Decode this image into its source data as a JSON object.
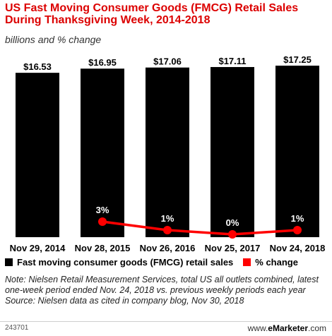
{
  "title": "US Fast Moving Consumer Goods (FMCG) Retail Sales During Thanksgiving Week, 2014-2018",
  "subtitle": "billions and % change",
  "chart_data": {
    "type": "bar",
    "categories": [
      "Nov 29, 2014",
      "Nov 28, 2015",
      "Nov 26, 2016",
      "Nov 25, 2017",
      "Nov 24, 2018"
    ],
    "series": [
      {
        "name": "Fast moving consumer goods (FMCG) retail sales",
        "type": "bar",
        "values": [
          16.53,
          16.95,
          17.06,
          17.11,
          17.25
        ],
        "labels": [
          "$16.53",
          "$16.95",
          "$17.06",
          "$17.11",
          "$17.25"
        ],
        "color": "#000000"
      },
      {
        "name": "% change",
        "type": "line",
        "values": [
          null,
          3,
          1,
          0,
          1
        ],
        "labels": [
          "",
          "3%",
          "1%",
          "0%",
          "1%"
        ],
        "color": "#ff0000"
      }
    ],
    "legend_position": "bottom"
  },
  "note": "Note: Nielsen Retail Measurement Services, total US all outlets combined, latest one-week period ended Nov. 24, 2018 vs. previous weekly periods each year",
  "source": "Source: Nielsen data as cited in company blog, Nov 30, 2018",
  "footer": {
    "chart_id": "243701",
    "brand_prefix": "www.",
    "brand_name": "eMarketer",
    "brand_suffix": ".com"
  }
}
